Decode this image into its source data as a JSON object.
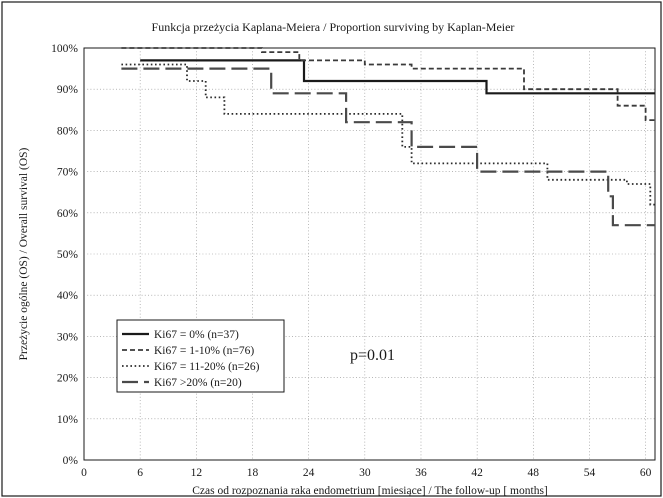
{
  "chart_data": {
    "type": "line",
    "step": true,
    "title": "Funkcja przeżycia Kaplana-Meiera / Proportion surviving by Kaplan-Meier",
    "xlabel": "Czas od rozpoznania raka endometrium [miesiące] / The follow-up [ months]",
    "ylabel": "Przeżycie ogólne (OS) / Overall survival (OS)",
    "xlim": [
      0,
      61
    ],
    "ylim": [
      0,
      100
    ],
    "xticks": [
      0,
      6,
      12,
      18,
      24,
      30,
      36,
      42,
      48,
      54,
      60
    ],
    "yticks": [
      0,
      10,
      20,
      30,
      40,
      50,
      60,
      70,
      80,
      90,
      100
    ],
    "ytick_labels": [
      "0%",
      "10%",
      "20%",
      "30%",
      "40%",
      "50%",
      "60%",
      "70%",
      "80%",
      "90%",
      "100%"
    ],
    "grid": true,
    "legend_position": "bottom-left",
    "annotation": "p=0.01",
    "series": [
      {
        "name": "Ki67 = 0% (n=37)",
        "color": "#1a1a1a",
        "style": "solid",
        "points": [
          [
            6,
            97
          ],
          [
            23.5,
            97
          ],
          [
            23.5,
            92
          ],
          [
            43,
            92
          ],
          [
            43,
            89
          ],
          [
            61,
            89
          ]
        ]
      },
      {
        "name": "Ki67 = 1-10% (n=76)",
        "color": "#3a3a3a",
        "style": "dashed",
        "points": [
          [
            4,
            100
          ],
          [
            19,
            100
          ],
          [
            19,
            99
          ],
          [
            23,
            99
          ],
          [
            23,
            97
          ],
          [
            30,
            97
          ],
          [
            30,
            96
          ],
          [
            35,
            96
          ],
          [
            35,
            95
          ],
          [
            47,
            95
          ],
          [
            47,
            90
          ],
          [
            57,
            90
          ],
          [
            57,
            86
          ],
          [
            60,
            86
          ],
          [
            60,
            82.5
          ],
          [
            61,
            82.5
          ]
        ]
      },
      {
        "name": "Ki67 = 11-20% (n=26)",
        "color": "#2a2a2a",
        "style": "dotted",
        "points": [
          [
            4,
            96
          ],
          [
            11,
            96
          ],
          [
            11,
            92
          ],
          [
            13,
            92
          ],
          [
            13,
            88
          ],
          [
            15,
            88
          ],
          [
            15,
            84
          ],
          [
            34,
            84
          ],
          [
            34,
            76
          ],
          [
            35,
            76
          ],
          [
            35,
            72
          ],
          [
            49.5,
            72
          ],
          [
            49.5,
            68
          ],
          [
            58,
            68
          ],
          [
            58,
            67
          ],
          [
            60.5,
            67
          ],
          [
            60.5,
            62
          ],
          [
            61,
            62
          ]
        ]
      },
      {
        "name": "Ki67 >20% (n=20)",
        "color": "#4a4a4a",
        "style": "longdash",
        "points": [
          [
            4,
            95
          ],
          [
            20,
            95
          ],
          [
            20,
            89
          ],
          [
            28,
            89
          ],
          [
            28,
            82
          ],
          [
            35,
            82
          ],
          [
            35,
            76
          ],
          [
            42,
            76
          ],
          [
            42,
            70
          ],
          [
            56,
            70
          ],
          [
            56,
            64
          ],
          [
            56.5,
            64
          ],
          [
            56.5,
            57
          ],
          [
            61,
            57
          ]
        ]
      }
    ]
  }
}
